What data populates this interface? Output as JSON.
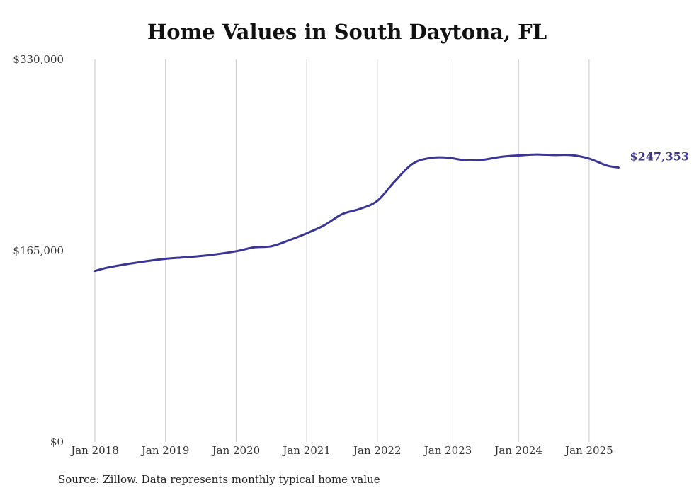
{
  "chart_data": {
    "type": "line",
    "title": "Home Values in South Daytona, FL",
    "source": "Source: Zillow. Data represents monthly typical home value",
    "xlabel": "",
    "ylabel": "",
    "ylim": [
      0,
      330000
    ],
    "grid": {
      "vertical": true,
      "horizontal": false
    },
    "y_ticks": [
      {
        "value": 0,
        "label": "$0"
      },
      {
        "value": 165000,
        "label": "$165,000"
      },
      {
        "value": 330000,
        "label": "$330,000"
      }
    ],
    "x_range": [
      "2018-01",
      "2025-06"
    ],
    "x_ticks": [
      {
        "date": "2018-01",
        "label": "Jan 2018"
      },
      {
        "date": "2019-01",
        "label": "Jan 2019"
      },
      {
        "date": "2020-01",
        "label": "Jan 2020"
      },
      {
        "date": "2021-01",
        "label": "Jan 2021"
      },
      {
        "date": "2022-01",
        "label": "Jan 2022"
      },
      {
        "date": "2023-01",
        "label": "Jan 2023"
      },
      {
        "date": "2024-01",
        "label": "Jan 2024"
      },
      {
        "date": "2025-01",
        "label": "Jan 2025"
      }
    ],
    "series": [
      {
        "color": "#3b3594",
        "end_label": "$247,353",
        "points": [
          {
            "x": "2018-01",
            "y": 147500
          },
          {
            "x": "2018-03",
            "y": 150200
          },
          {
            "x": "2018-06",
            "y": 153000
          },
          {
            "x": "2018-09",
            "y": 155400
          },
          {
            "x": "2019-01",
            "y": 158000
          },
          {
            "x": "2019-05",
            "y": 159500
          },
          {
            "x": "2019-09",
            "y": 161500
          },
          {
            "x": "2020-01",
            "y": 164500
          },
          {
            "x": "2020-04",
            "y": 167800
          },
          {
            "x": "2020-07",
            "y": 168800
          },
          {
            "x": "2020-10",
            "y": 174000
          },
          {
            "x": "2021-01",
            "y": 180000
          },
          {
            "x": "2021-04",
            "y": 187000
          },
          {
            "x": "2021-07",
            "y": 196500
          },
          {
            "x": "2021-10",
            "y": 201000
          },
          {
            "x": "2022-01",
            "y": 208000
          },
          {
            "x": "2022-04",
            "y": 225000
          },
          {
            "x": "2022-07",
            "y": 240000
          },
          {
            "x": "2022-10",
            "y": 245000
          },
          {
            "x": "2023-01",
            "y": 245300
          },
          {
            "x": "2023-04",
            "y": 243000
          },
          {
            "x": "2023-07",
            "y": 243500
          },
          {
            "x": "2023-10",
            "y": 246000
          },
          {
            "x": "2024-01",
            "y": 247200
          },
          {
            "x": "2024-04",
            "y": 248000
          },
          {
            "x": "2024-07",
            "y": 247600
          },
          {
            "x": "2024-10",
            "y": 247500
          },
          {
            "x": "2025-01",
            "y": 244500
          },
          {
            "x": "2025-04",
            "y": 238500
          },
          {
            "x": "2025-06",
            "y": 247353
          }
        ]
      }
    ]
  }
}
